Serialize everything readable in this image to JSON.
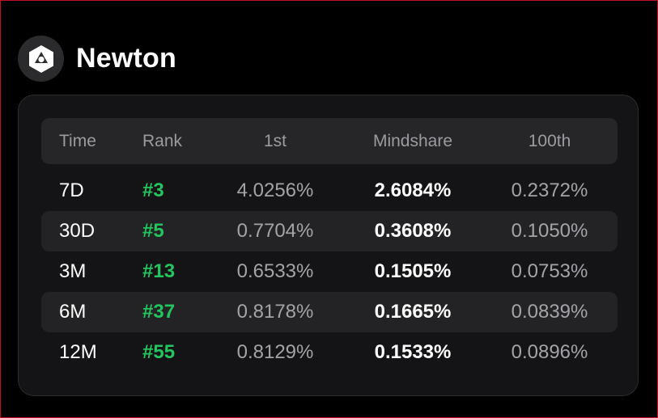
{
  "project": {
    "name": "Newton",
    "logo_icon": "newton-logo-icon"
  },
  "colors": {
    "background": "#000000",
    "card": "#141416",
    "rank_accent": "#22c55e",
    "border_frame": "#c4101c"
  },
  "table": {
    "columns": [
      "Time",
      "Rank",
      "1st",
      "Mindshare",
      "100th"
    ],
    "rows": [
      {
        "time": "7D",
        "rank": "#3",
        "first": "4.0256%",
        "mindshare": "2.6084%",
        "hundredth": "0.2372%"
      },
      {
        "time": "30D",
        "rank": "#5",
        "first": "0.7704%",
        "mindshare": "0.3608%",
        "hundredth": "0.1050%"
      },
      {
        "time": "3M",
        "rank": "#13",
        "first": "0.6533%",
        "mindshare": "0.1505%",
        "hundredth": "0.0753%"
      },
      {
        "time": "6M",
        "rank": "#37",
        "first": "0.8178%",
        "mindshare": "0.1665%",
        "hundredth": "0.0839%"
      },
      {
        "time": "12M",
        "rank": "#55",
        "first": "0.8129%",
        "mindshare": "0.1533%",
        "hundredth": "0.0896%"
      }
    ]
  }
}
